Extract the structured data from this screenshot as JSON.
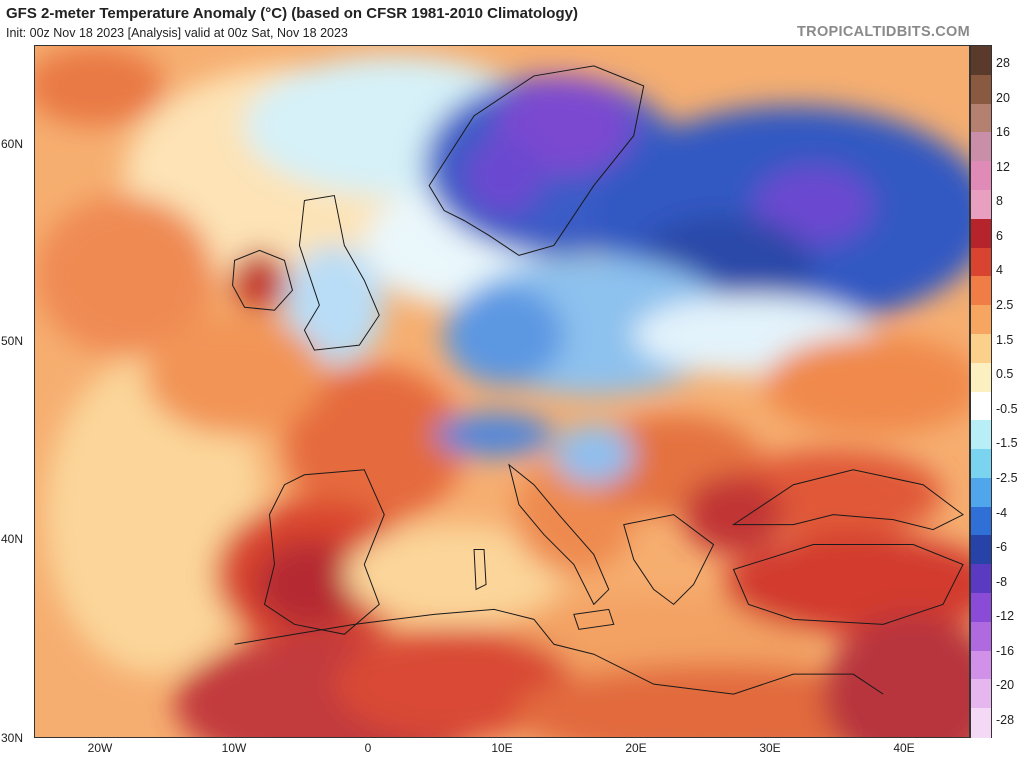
{
  "header": {
    "title": "GFS 2-meter Temperature Anomaly (°C) (based on CFSR 1981-2010 Climatology)",
    "subtitle": "Init: 00z Nov 18 2023   [Analysis]   valid at 00z Sat, Nov 18 2023",
    "brand": "TROPICALTIDBITS.COM"
  },
  "axes": {
    "lat_labels": [
      "60N",
      "50N",
      "40N",
      "30N"
    ],
    "lon_labels": [
      "20W",
      "10W",
      "0",
      "10E",
      "20E",
      "30E",
      "40E"
    ]
  },
  "colorbar": {
    "labels": [
      "28",
      "20",
      "16",
      "12",
      "8",
      "6",
      "4",
      "2.5",
      "1.5",
      "0.5",
      "-0.5",
      "-1.5",
      "-2.5",
      "-4",
      "-6",
      "-8",
      "-12",
      "-16",
      "-20",
      "-28"
    ],
    "colors": [
      "#5a3a2a",
      "#8a5a40",
      "#b48070",
      "#c98fa8",
      "#e08ab8",
      "#e9a0c0",
      "#b4242a",
      "#d8442f",
      "#ef7d45",
      "#f7a662",
      "#fbd08a",
      "#fdf0c0",
      "#ffffff",
      "#b8eef5",
      "#7ad3ef",
      "#4fa6ea",
      "#2f6fd6",
      "#2743a8",
      "#5a3ac0",
      "#8a4bd6",
      "#b06ae0",
      "#d191e8",
      "#e6b6ef",
      "#f3d9f5"
    ]
  },
  "map": {
    "colors": {
      "ocean_warm": "#f7b577",
      "ocean_pale": "#fde3b6",
      "atlantic_cool": "#cfeef7",
      "scandinavia_cold": "#2f4fbe",
      "scandinavia_purple": "#7a49d0",
      "russia_cold": "#3358c2",
      "poland_cool": "#7ab3ea",
      "central_light": "#d4ecfa",
      "iberia_warm": "#d9442f",
      "turkey_warm": "#d23b2d",
      "africa_warm": "#d94a34",
      "africa_hot": "#a1304e",
      "mediterranean": "#f3a263",
      "black_sea": "#e05838",
      "alps_cold": "#4f86dc",
      "borders": "#1a1a1a"
    }
  }
}
